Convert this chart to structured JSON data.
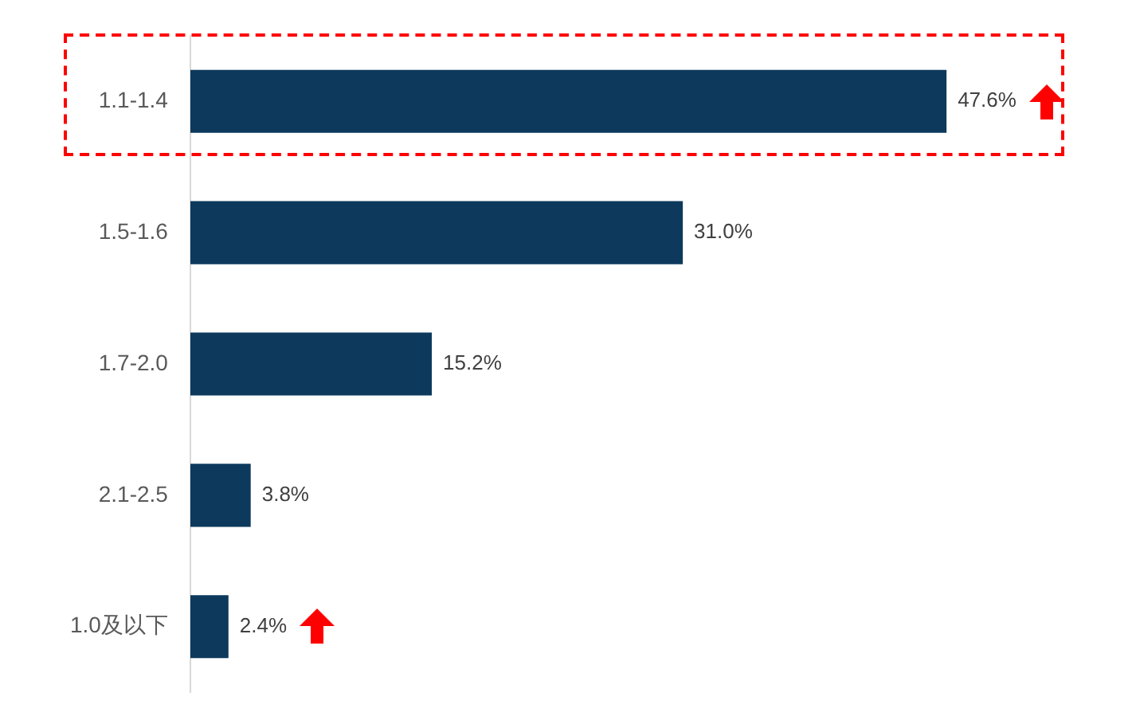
{
  "chart_data": {
    "type": "bar",
    "orientation": "horizontal",
    "categories": [
      "1.1-1.4",
      "1.5-1.6",
      "1.7-2.0",
      "2.1-2.5",
      "1.0及以下"
    ],
    "values": [
      47.6,
      31.0,
      15.2,
      3.8,
      2.4
    ],
    "value_labels": [
      "47.6%",
      "31.0%",
      "15.2%",
      "3.8%",
      "2.4%"
    ],
    "color": "#0d3a5c",
    "grid": false,
    "legend": false,
    "tick_labels": "y"
  }
}
